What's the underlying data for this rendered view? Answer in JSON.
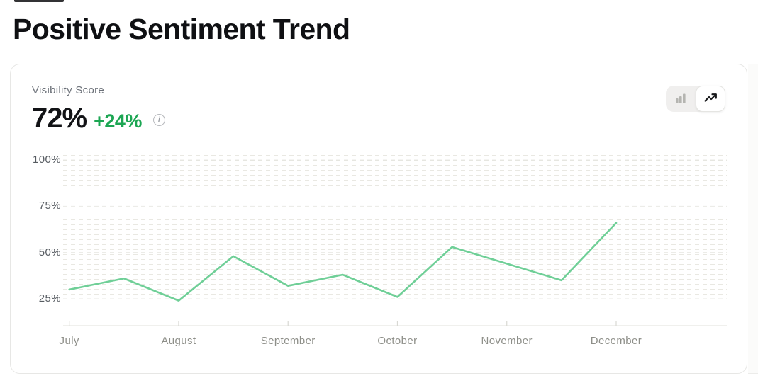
{
  "page": {
    "title": "Positive Sentiment Trend"
  },
  "card": {
    "metric_label": "Visibility Score",
    "metric_value": "72%",
    "metric_delta": "+24%",
    "info_icon": "info-circle-icon",
    "view_toggle": {
      "options": [
        {
          "name": "bar-view",
          "icon": "bar-chart-icon",
          "active": false
        },
        {
          "name": "line-view",
          "icon": "trending-up-icon",
          "active": true
        }
      ]
    }
  },
  "chart_data": {
    "type": "line",
    "title": "Visibility Score",
    "series_name": "Positive Sentiment",
    "categories": [
      "July",
      "August",
      "September",
      "October",
      "November",
      "December"
    ],
    "x_month_units": [
      0,
      0.5,
      1,
      1.5,
      2,
      2.5,
      3,
      3.5,
      4,
      4.5,
      5
    ],
    "values": [
      30,
      36,
      24,
      48,
      32,
      38,
      26,
      53,
      44,
      35,
      66
    ],
    "yticks": [
      "100%",
      "75%",
      "50%",
      "25%"
    ],
    "ytick_values": [
      100,
      75,
      50,
      25
    ],
    "ylim": [
      0,
      100
    ],
    "grid": "faint-dashed",
    "legend": "none",
    "line_color": "#6fcf97"
  },
  "colors": {
    "delta_green": "#1ca653",
    "line_green": "#6fcf97",
    "axis_line": "#e7e7e2",
    "tick": "#d8d8d3",
    "gridline": "#e3e2dc"
  }
}
